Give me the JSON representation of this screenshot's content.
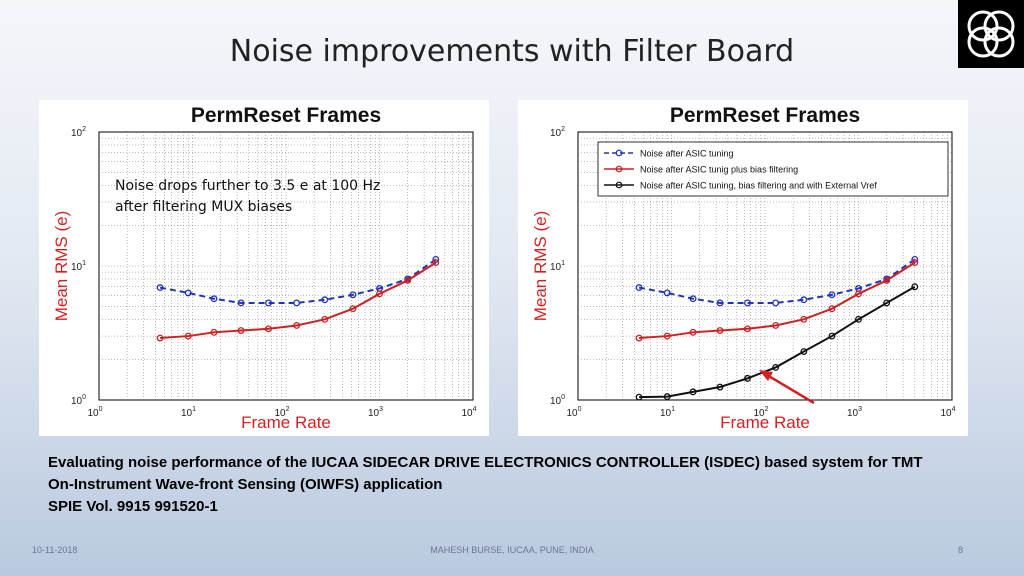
{
  "slide": {
    "title": "Noise improvements with Filter Board",
    "caption": [
      "Evaluating noise performance of the IUCAA SIDECAR DRIVE ELECTRONICS CONTROLLER (ISDEC) based system for TMT",
      "On-Instrument Wave-front Sensing (OIWFS) application",
      "SPIE  Vol. 9915 991520-1"
    ],
    "footer": {
      "date": "10-11-2018",
      "center": "MAHESH BURSE, IUCAA, PUNE, INDIA",
      "page": "8"
    }
  },
  "chart_data": [
    {
      "type": "line",
      "title": "PermReset Frames",
      "xlabel": "Frame Rate",
      "ylabel": "Mean RMS (e)",
      "xscale": "log",
      "yscale": "log",
      "xlim": [
        1,
        10000
      ],
      "ylim": [
        1,
        100
      ],
      "xticks": [
        {
          "base": "10",
          "exp": "0"
        },
        {
          "base": "10",
          "exp": "1"
        },
        {
          "base": "10",
          "exp": "2"
        },
        {
          "base": "10",
          "exp": "3"
        },
        {
          "base": "10",
          "exp": "4"
        }
      ],
      "yticks": [
        {
          "base": "10",
          "exp": "0"
        },
        {
          "base": "10",
          "exp": "1"
        },
        {
          "base": "10",
          "exp": "2"
        }
      ],
      "grid": true,
      "annotation": [
        "Noise drops further to 3.5 e at 100 Hz",
        "after filtering MUX biases"
      ],
      "series": [
        {
          "color": "#2233bb",
          "dash": "dashed",
          "x": [
            4.5,
            9,
            17,
            33,
            65,
            130,
            260,
            520,
            1000,
            2000,
            4000
          ],
          "y": [
            6.9,
            6.3,
            5.7,
            5.3,
            5.3,
            5.3,
            5.6,
            6.1,
            6.8,
            8.0,
            11.2
          ]
        },
        {
          "color": "#cc2222",
          "dash": "solid",
          "x": [
            4.5,
            9,
            17,
            33,
            65,
            130,
            260,
            520,
            1000,
            2000,
            4000
          ],
          "y": [
            2.9,
            3.0,
            3.2,
            3.3,
            3.4,
            3.6,
            4.0,
            4.8,
            6.2,
            7.8,
            10.6
          ]
        }
      ]
    },
    {
      "type": "line",
      "title": "PermReset Frames",
      "xlabel": "Frame Rate",
      "ylabel": "Mean RMS (e)",
      "xscale": "log",
      "yscale": "log",
      "xlim": [
        1,
        10000
      ],
      "ylim": [
        1,
        100
      ],
      "xticks": [
        {
          "base": "10",
          "exp": "0"
        },
        {
          "base": "10",
          "exp": "1"
        },
        {
          "base": "10",
          "exp": "2"
        },
        {
          "base": "10",
          "exp": "3"
        },
        {
          "base": "10",
          "exp": "4"
        }
      ],
      "yticks": [
        {
          "base": "10",
          "exp": "0"
        },
        {
          "base": "10",
          "exp": "1"
        },
        {
          "base": "10",
          "exp": "2"
        }
      ],
      "grid": true,
      "legend": "top",
      "series": [
        {
          "name": "Noise after ASIC tuning",
          "color": "#2233bb",
          "dash": "dashed",
          "x": [
            4.5,
            9,
            17,
            33,
            65,
            130,
            260,
            520,
            1000,
            2000,
            4000
          ],
          "y": [
            6.9,
            6.3,
            5.7,
            5.3,
            5.3,
            5.3,
            5.6,
            6.1,
            6.8,
            8.0,
            11.2
          ]
        },
        {
          "name": "Noise after ASIC tunig plus bias filtering",
          "color": "#cc2222",
          "dash": "solid",
          "x": [
            4.5,
            9,
            17,
            33,
            65,
            130,
            260,
            520,
            1000,
            2000,
            4000
          ],
          "y": [
            2.9,
            3.0,
            3.2,
            3.3,
            3.4,
            3.6,
            4.0,
            4.8,
            6.2,
            7.8,
            10.6
          ]
        },
        {
          "name": "Noise after ASIC tuning, bias filtering and with External Vref",
          "color": "#111111",
          "dash": "solid",
          "x": [
            4.5,
            9,
            17,
            33,
            65,
            130,
            260,
            520,
            1000,
            2000,
            4000
          ],
          "y": [
            1.05,
            1.06,
            1.15,
            1.25,
            1.45,
            1.75,
            2.3,
            3.0,
            4.0,
            5.3,
            7.0
          ]
        }
      ]
    }
  ]
}
